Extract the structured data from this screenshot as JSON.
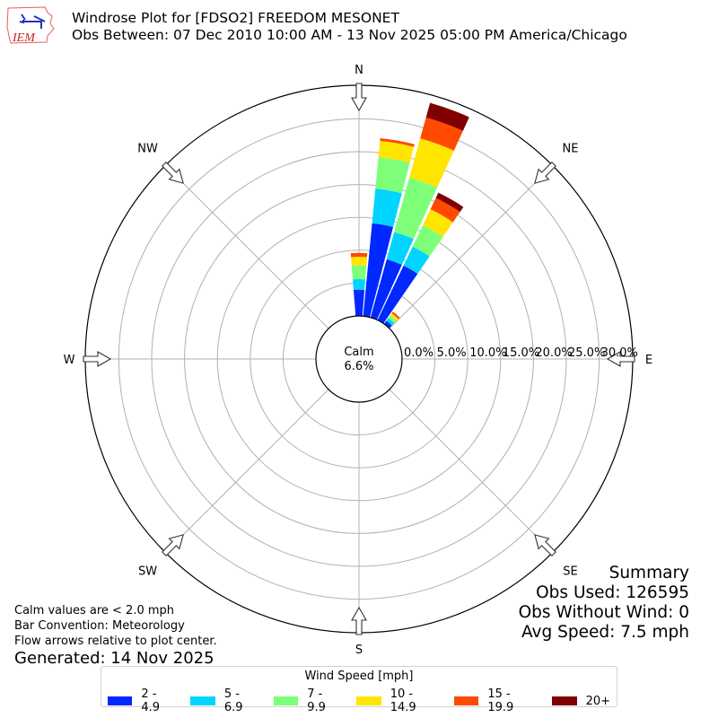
{
  "header": {
    "logo_text": "IEM",
    "title_line1": "Windrose Plot for [FDSO2] FREEDOM MESONET",
    "title_line2": "Obs Between: 07 Dec 2010 10:00 AM - 13 Nov 2025 05:00 PM America/Chicago"
  },
  "calm": {
    "label": "Calm",
    "value": "6.6%"
  },
  "directions": [
    {
      "label": "N",
      "angle": 0
    },
    {
      "label": "NE",
      "angle": 45
    },
    {
      "label": "E",
      "angle": 90
    },
    {
      "label": "SE",
      "angle": 135
    },
    {
      "label": "S",
      "angle": 180
    },
    {
      "label": "SW",
      "angle": 225
    },
    {
      "label": "W",
      "angle": 270
    },
    {
      "label": "NW",
      "angle": 315
    }
  ],
  "notes": {
    "line1": "Calm values are < 2.0 mph",
    "line2": "Bar Convention: Meteorology",
    "line3": "Flow arrows relative to plot center.",
    "generated": "Generated: 14 Nov 2025"
  },
  "summary": {
    "title": "Summary",
    "obs_used": "Obs Used: 126595",
    "obs_without_wind": "Obs Without Wind: 0",
    "avg_speed": "Avg Speed: 7.5 mph"
  },
  "legend": {
    "title": "Wind Speed [mph]",
    "items": [
      {
        "label": "2 - 4.9",
        "color": "#0028ff"
      },
      {
        "label": "5 - 6.9",
        "color": "#00d4ff"
      },
      {
        "label": "7 - 9.9",
        "color": "#7dff7a"
      },
      {
        "label": "10 - 14.9",
        "color": "#ffe500"
      },
      {
        "label": "15 - 19.9",
        "color": "#ff4a00"
      },
      {
        "label": "20+",
        "color": "#800000"
      }
    ]
  },
  "chart_data": {
    "type": "windrose",
    "title": "Windrose Plot for [FDSO2] FREEDOM MESONET",
    "subtitle": "Obs Between: 07 Dec 2010 10:00 AM - 13 Nov 2025 05:00 PM America/Chicago",
    "radial_ticks": [
      "0.0%",
      "5.0%",
      "10.0%",
      "15.0%",
      "20.0%",
      "25.0%",
      "30.0%"
    ],
    "radial_max": 34.8,
    "calm_percent": 6.6,
    "speed_bins": [
      "2 - 4.9",
      "5 - 6.9",
      "7 - 9.9",
      "10 - 14.9",
      "15 - 19.9",
      "20+"
    ],
    "bars": [
      {
        "direction_deg": 0,
        "values": [
          4.0,
          1.6,
          2.1,
          1.3,
          0.6,
          0.0
        ]
      },
      {
        "direction_deg": 10,
        "values": [
          14.2,
          5.3,
          4.8,
          2.5,
          0.4,
          0.0
        ]
      },
      {
        "direction_deg": 20,
        "values": [
          9.2,
          4.3,
          8.6,
          6.2,
          3.3,
          2.3
        ]
      },
      {
        "direction_deg": 30,
        "values": [
          9.2,
          3.2,
          3.6,
          2.7,
          1.9,
          0.9
        ]
      },
      {
        "direction_deg": 40,
        "values": [
          0.6,
          0.5,
          0.5,
          0.4,
          0.3,
          0.0
        ]
      }
    ],
    "legend_position": "bottom-center",
    "grid": true
  }
}
